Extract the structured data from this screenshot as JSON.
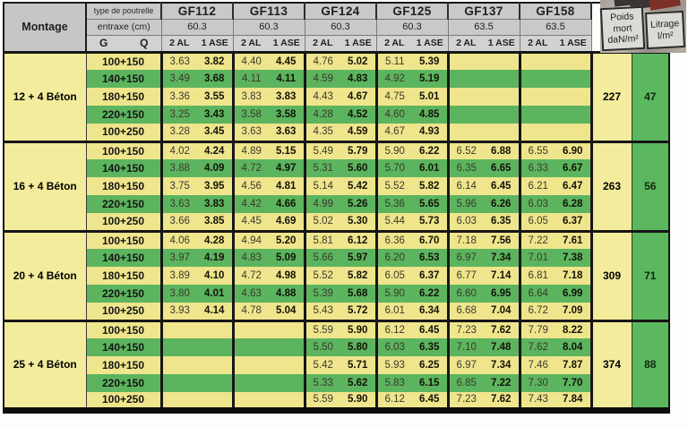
{
  "header": {
    "montage": "Montage",
    "type_de_poutrelle": "type de poutrelle",
    "entraxe": "entraxe (cm)",
    "g": "G",
    "q": "Q",
    "al2": "2 AL",
    "ase1": "1 ASE",
    "poids_label": "Poids mort daN/m²",
    "litrage_label": "Litrage l/m²",
    "beams": [
      {
        "name": "GF112",
        "entraxe": "60.3"
      },
      {
        "name": "GF113",
        "entraxe": "60.3"
      },
      {
        "name": "GF124",
        "entraxe": "60.3"
      },
      {
        "name": "GF125",
        "entraxe": "60.3"
      },
      {
        "name": "GF137",
        "entraxe": "63.5"
      },
      {
        "name": "GF158",
        "entraxe": "63.5"
      }
    ]
  },
  "colors": {
    "row_yellow": "#EFE58C",
    "row_green": "#5CB45F",
    "merged_yellow": "#F3EC9C",
    "header_gray": "#C9C9C9",
    "border_black": "#161616"
  },
  "blocks": [
    {
      "montage": "12 + 4 Béton",
      "poids_mort": "227",
      "litrage": "47",
      "rows": [
        {
          "label": "100+150",
          "values": [
            "3.63",
            "3.82",
            "4.40",
            "4.45",
            "4.76",
            "5.02",
            "5.11",
            "5.39",
            "",
            "",
            "",
            ""
          ]
        },
        {
          "label": "140+150",
          "values": [
            "3.49",
            "3.68",
            "4.11",
            "4.11",
            "4.59",
            "4.83",
            "4.92",
            "5.19",
            "",
            "",
            "",
            ""
          ]
        },
        {
          "label": "180+150",
          "values": [
            "3.36",
            "3.55",
            "3.83",
            "3.83",
            "4.43",
            "4.67",
            "4.75",
            "5.01",
            "",
            "",
            "",
            ""
          ]
        },
        {
          "label": "220+150",
          "values": [
            "3.25",
            "3.43",
            "3.58",
            "3.58",
            "4.28",
            "4.52",
            "4.60",
            "4.85",
            "",
            "",
            "",
            ""
          ]
        },
        {
          "label": "100+250",
          "values": [
            "3.28",
            "3.45",
            "3.63",
            "3.63",
            "4.35",
            "4.59",
            "4.67",
            "4.93",
            "",
            "",
            "",
            ""
          ]
        }
      ]
    },
    {
      "montage": "16 + 4 Béton",
      "poids_mort": "263",
      "litrage": "56",
      "rows": [
        {
          "label": "100+150",
          "values": [
            "4.02",
            "4.24",
            "4.89",
            "5.15",
            "5.49",
            "5.79",
            "5.90",
            "6.22",
            "6.52",
            "6.88",
            "6.55",
            "6.90"
          ]
        },
        {
          "label": "140+150",
          "values": [
            "3.88",
            "4.09",
            "4.72",
            "4.97",
            "5.31",
            "5.60",
            "5.70",
            "6.01",
            "6.35",
            "6.65",
            "6.33",
            "6.67"
          ]
        },
        {
          "label": "180+150",
          "values": [
            "3.75",
            "3.95",
            "4.56",
            "4.81",
            "5.14",
            "5.42",
            "5.52",
            "5.82",
            "6.14",
            "6.45",
            "6.21",
            "6.47"
          ]
        },
        {
          "label": "220+150",
          "values": [
            "3.63",
            "3.83",
            "4.42",
            "4.66",
            "4.99",
            "5.26",
            "5.36",
            "5.65",
            "5.96",
            "6.26",
            "6.03",
            "6.28"
          ]
        },
        {
          "label": "100+250",
          "values": [
            "3.66",
            "3.85",
            "4.45",
            "4.69",
            "5.02",
            "5.30",
            "5.44",
            "5.73",
            "6.03",
            "6.35",
            "6.05",
            "6.37"
          ]
        }
      ]
    },
    {
      "montage": "20 + 4 Béton",
      "poids_mort": "309",
      "litrage": "71",
      "rows": [
        {
          "label": "100+150",
          "values": [
            "4.06",
            "4.28",
            "4.94",
            "5.20",
            "5.81",
            "6.12",
            "6.36",
            "6.70",
            "7.18",
            "7.56",
            "7.22",
            "7.61"
          ]
        },
        {
          "label": "140+150",
          "values": [
            "3.97",
            "4.19",
            "4.83",
            "5.09",
            "5.66",
            "5.97",
            "6.20",
            "6.53",
            "6.97",
            "7.34",
            "7.01",
            "7.38"
          ]
        },
        {
          "label": "180+150",
          "values": [
            "3.89",
            "4.10",
            "4.72",
            "4.98",
            "5.52",
            "5.82",
            "6.05",
            "6.37",
            "6.77",
            "7.14",
            "6.81",
            "7.18"
          ]
        },
        {
          "label": "220+150",
          "values": [
            "3.80",
            "4.01",
            "4.63",
            "4.88",
            "5.39",
            "5.68",
            "5.90",
            "6.22",
            "6.60",
            "6.95",
            "6.64",
            "6.99"
          ]
        },
        {
          "label": "100+250",
          "values": [
            "3.93",
            "4.14",
            "4.78",
            "5.04",
            "5.43",
            "5.72",
            "6.01",
            "6.34",
            "6.68",
            "7.04",
            "6.72",
            "7.09"
          ]
        }
      ]
    },
    {
      "montage": "25 + 4 Béton",
      "poids_mort": "374",
      "litrage": "88",
      "rows": [
        {
          "label": "100+150",
          "values": [
            "",
            "",
            "",
            "",
            "5.59",
            "5.90",
            "6.12",
            "6.45",
            "7.23",
            "7.62",
            "7.79",
            "8.22"
          ]
        },
        {
          "label": "140+150",
          "values": [
            "",
            "",
            "",
            "",
            "5.50",
            "5.80",
            "6.03",
            "6.35",
            "7.10",
            "7.48",
            "7.62",
            "8.04"
          ]
        },
        {
          "label": "180+150",
          "values": [
            "",
            "",
            "",
            "",
            "5.42",
            "5.71",
            "5.93",
            "6.25",
            "6.97",
            "7.34",
            "7.46",
            "7.87"
          ]
        },
        {
          "label": "220+150",
          "values": [
            "",
            "",
            "",
            "",
            "5.33",
            "5.62",
            "5.83",
            "6.15",
            "6.85",
            "7.22",
            "7.30",
            "7.70"
          ]
        },
        {
          "label": "100+250",
          "values": [
            "",
            "",
            "",
            "",
            "5.59",
            "5.90",
            "6.12",
            "6.45",
            "7.23",
            "7.62",
            "7.43",
            "7.84"
          ]
        }
      ]
    }
  ]
}
